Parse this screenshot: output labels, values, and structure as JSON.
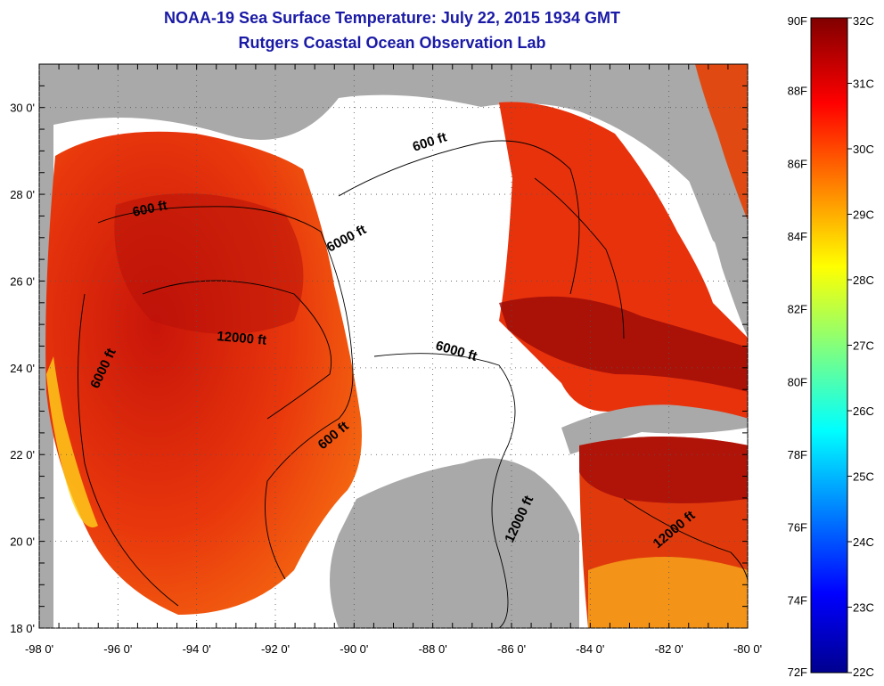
{
  "title": "NOAA-19 Sea Surface Temperature:  July 22, 2015 1934 GMT",
  "subtitle": "Rutgers Coastal Ocean Observation Lab",
  "map": {
    "lon_range": [
      -98,
      -80
    ],
    "lat_range": [
      18,
      31
    ],
    "x_ticks": [
      {
        "value": -98,
        "label": "-98 0'"
      },
      {
        "value": -96,
        "label": "-96 0'"
      },
      {
        "value": -94,
        "label": "-94 0'"
      },
      {
        "value": -92,
        "label": "-92 0'"
      },
      {
        "value": -90,
        "label": "-90 0'"
      },
      {
        "value": -88,
        "label": "-88 0'"
      },
      {
        "value": -86,
        "label": "-86 0'"
      },
      {
        "value": -84,
        "label": "-84 0'"
      },
      {
        "value": -82,
        "label": "-82 0'"
      },
      {
        "value": -80,
        "label": "-80 0'"
      }
    ],
    "y_ticks": [
      {
        "value": 18,
        "label": "18 0'"
      },
      {
        "value": 20,
        "label": "20 0'"
      },
      {
        "value": 22,
        "label": "22 0'"
      },
      {
        "value": 24,
        "label": "24 0'"
      },
      {
        "value": 26,
        "label": "26 0'"
      },
      {
        "value": 28,
        "label": "28 0'"
      },
      {
        "value": 30,
        "label": "30 0'"
      }
    ],
    "depth_labels": [
      "600 ft",
      "600 ft",
      "600 ft",
      "6000 ft",
      "6000 ft",
      "6000 ft",
      "12000 ft",
      "12000 ft",
      "12000 ft"
    ],
    "land_color": "#a9a9a9",
    "missing_color": "#ffffff"
  },
  "colorbar": {
    "fahrenheit_labels": [
      "90F",
      "88F",
      "86F",
      "84F",
      "82F",
      "80F",
      "78F",
      "76F",
      "74F",
      "72F"
    ],
    "celsius_labels": [
      "32C",
      "31C",
      "30C",
      "29C",
      "28C",
      "27C",
      "26C",
      "25C",
      "24C",
      "23C",
      "22C"
    ],
    "range_celsius": [
      22,
      32
    ]
  }
}
